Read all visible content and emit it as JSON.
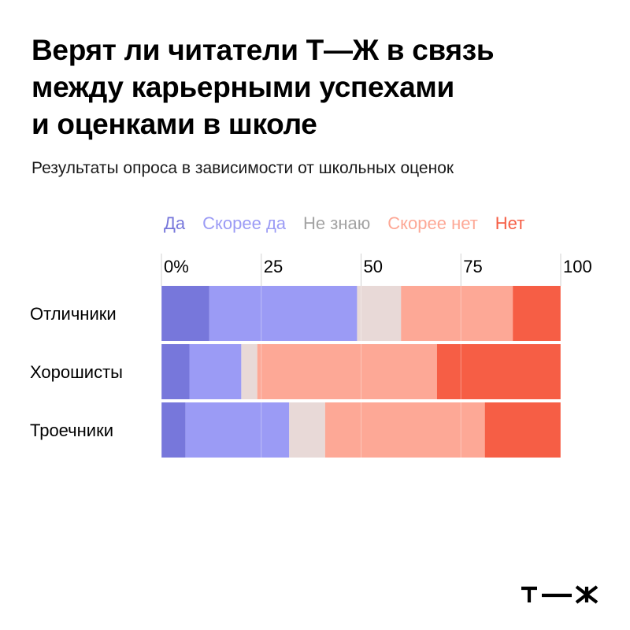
{
  "title_lines": [
    "Верят ли читатели Т—Ж в связь",
    "между карьерными успехами",
    "и оценками в школе"
  ],
  "subtitle": "Результаты опроса в зависимости от школьных оценок",
  "colors": {
    "Да": "#7777db",
    "Скорее да": "#9b9bf5",
    "Не знаю": "#e8d9d7",
    "Скорее нет": "#fda896",
    "Нет": "#f65e45",
    "legend_neutral": "#a3a3a3"
  },
  "chart_data": {
    "type": "bar",
    "orientation": "horizontal",
    "stacked": true,
    "xlim": [
      0,
      100
    ],
    "xticks": [
      "0%",
      "25",
      "50",
      "75",
      "100"
    ],
    "grid": true,
    "legend_position": "top",
    "categories": [
      "Отличники",
      "Хорошисты",
      "Троечники"
    ],
    "series": [
      {
        "name": "Да",
        "values": [
          12,
          7,
          6
        ]
      },
      {
        "name": "Скорее да",
        "values": [
          37,
          13,
          26
        ]
      },
      {
        "name": "Не знаю",
        "values": [
          11,
          4,
          9
        ]
      },
      {
        "name": "Скорее нет",
        "values": [
          28,
          45,
          40
        ]
      },
      {
        "name": "Нет",
        "values": [
          12,
          31,
          19
        ]
      }
    ]
  }
}
